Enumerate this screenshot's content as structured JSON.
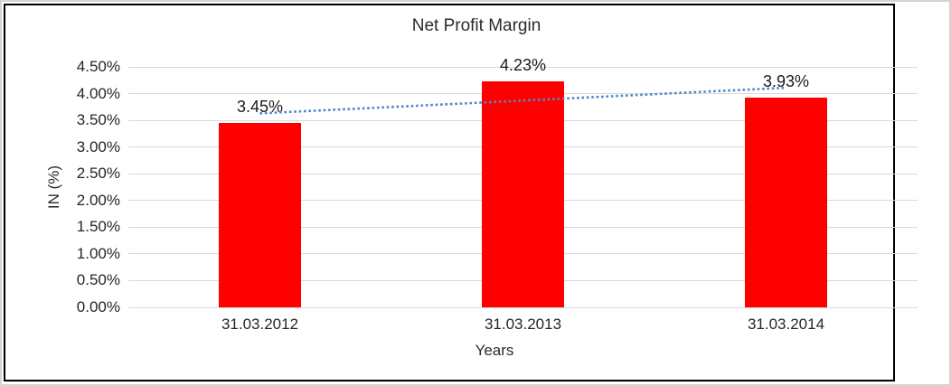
{
  "chart_data": {
    "type": "bar",
    "title": "Net Profit Margin",
    "categories": [
      "31.03.2012",
      "31.03.2013",
      "31.03.2014"
    ],
    "values": [
      3.45,
      4.23,
      3.93
    ],
    "data_labels": [
      "3.45%",
      "4.23%",
      "3.93%"
    ],
    "xlabel": "Years",
    "ylabel": "IN (%)",
    "ylim": [
      0,
      4.5
    ],
    "ytick_step": 0.5,
    "ytick_labels": [
      "0.00%",
      "0.50%",
      "1.00%",
      "1.50%",
      "2.00%",
      "2.50%",
      "3.00%",
      "3.50%",
      "4.00%",
      "4.50%"
    ],
    "grid": true,
    "legend": "none",
    "bar_color": "#ff0000",
    "trendline": {
      "type": "linear",
      "style": "dotted",
      "color": "#4f87c9",
      "start_value": 3.63,
      "end_value": 4.11
    }
  }
}
